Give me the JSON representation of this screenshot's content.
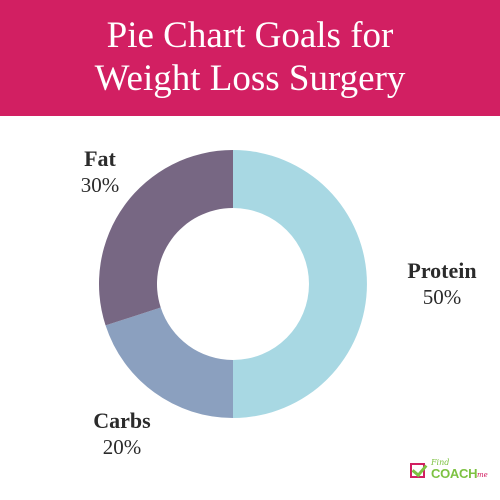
{
  "header": {
    "title_line1": "Pie Chart Goals for",
    "title_line2": "Weight Loss Surgery"
  },
  "colors": {
    "header_bg": "#d21f62",
    "protein": "#a8d8e3",
    "carbs": "#8ba0bf",
    "fat": "#776783"
  },
  "chart_data": {
    "type": "pie",
    "title": "Pie Chart Goals for Weight Loss Surgery",
    "donut": true,
    "slices": [
      {
        "label": "Protein",
        "value": 50,
        "value_label": "50%",
        "color": "#a8d8e3"
      },
      {
        "label": "Carbs",
        "value": 20,
        "value_label": "20%",
        "color": "#8ba0bf"
      },
      {
        "label": "Fat",
        "value": 30,
        "value_label": "30%",
        "color": "#776783"
      }
    ]
  },
  "logo": {
    "small_text": "Find",
    "big_text": "COACH",
    "suffix_text": "me"
  }
}
